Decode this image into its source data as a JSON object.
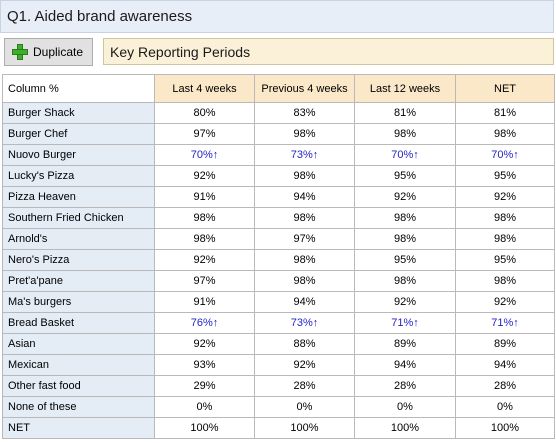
{
  "title": "Q1. Aided brand awareness",
  "toolbar": {
    "duplicate_label": "Duplicate",
    "period_label": "Key Reporting Periods"
  },
  "table": {
    "corner": "Column %",
    "columns": [
      "Last 4 weeks",
      "Previous 4 weeks",
      "Last 12 weeks",
      "NET"
    ],
    "rows": [
      {
        "label": "Burger Shack",
        "values": [
          "80%",
          "83%",
          "81%",
          "81%"
        ],
        "sig": [
          false,
          false,
          false,
          false
        ]
      },
      {
        "label": "Burger Chef",
        "values": [
          "97%",
          "98%",
          "98%",
          "98%"
        ],
        "sig": [
          false,
          false,
          false,
          false
        ]
      },
      {
        "label": "Nuovo Burger",
        "values": [
          "70%↑",
          "73%↑",
          "70%↑",
          "70%↑"
        ],
        "sig": [
          true,
          true,
          true,
          true
        ]
      },
      {
        "label": "Lucky's Pizza",
        "values": [
          "92%",
          "98%",
          "95%",
          "95%"
        ],
        "sig": [
          false,
          false,
          false,
          false
        ]
      },
      {
        "label": "Pizza Heaven",
        "values": [
          "91%",
          "94%",
          "92%",
          "92%"
        ],
        "sig": [
          false,
          false,
          false,
          false
        ]
      },
      {
        "label": "Southern Fried Chicken",
        "values": [
          "98%",
          "98%",
          "98%",
          "98%"
        ],
        "sig": [
          false,
          false,
          false,
          false
        ]
      },
      {
        "label": "Arnold's",
        "values": [
          "98%",
          "97%",
          "98%",
          "98%"
        ],
        "sig": [
          false,
          false,
          false,
          false
        ]
      },
      {
        "label": "Nero's Pizza",
        "values": [
          "92%",
          "98%",
          "95%",
          "95%"
        ],
        "sig": [
          false,
          false,
          false,
          false
        ]
      },
      {
        "label": "Pret'a'pane",
        "values": [
          "97%",
          "98%",
          "98%",
          "98%"
        ],
        "sig": [
          false,
          false,
          false,
          false
        ]
      },
      {
        "label": "Ma's burgers",
        "values": [
          "91%",
          "94%",
          "92%",
          "92%"
        ],
        "sig": [
          false,
          false,
          false,
          false
        ]
      },
      {
        "label": "Bread Basket",
        "values": [
          "76%↑",
          "73%↑",
          "71%↑",
          "71%↑"
        ],
        "sig": [
          true,
          true,
          true,
          true
        ]
      },
      {
        "label": "Asian",
        "values": [
          "92%",
          "88%",
          "89%",
          "89%"
        ],
        "sig": [
          false,
          false,
          false,
          false
        ]
      },
      {
        "label": "Mexican",
        "values": [
          "93%",
          "92%",
          "94%",
          "94%"
        ],
        "sig": [
          false,
          false,
          false,
          false
        ]
      },
      {
        "label": "Other fast food",
        "values": [
          "29%",
          "28%",
          "28%",
          "28%"
        ],
        "sig": [
          false,
          false,
          false,
          false
        ]
      },
      {
        "label": "None of these",
        "values": [
          "0%",
          "0%",
          "0%",
          "0%"
        ],
        "sig": [
          false,
          false,
          false,
          false
        ]
      },
      {
        "label": "NET",
        "values": [
          "100%",
          "100%",
          "100%",
          "100%"
        ],
        "sig": [
          false,
          false,
          false,
          false
        ]
      }
    ]
  },
  "colors": {
    "significant_text": "#2323c8",
    "header_bg": "#fbe8c8",
    "rowlabel_bg": "#e4ecf6"
  }
}
